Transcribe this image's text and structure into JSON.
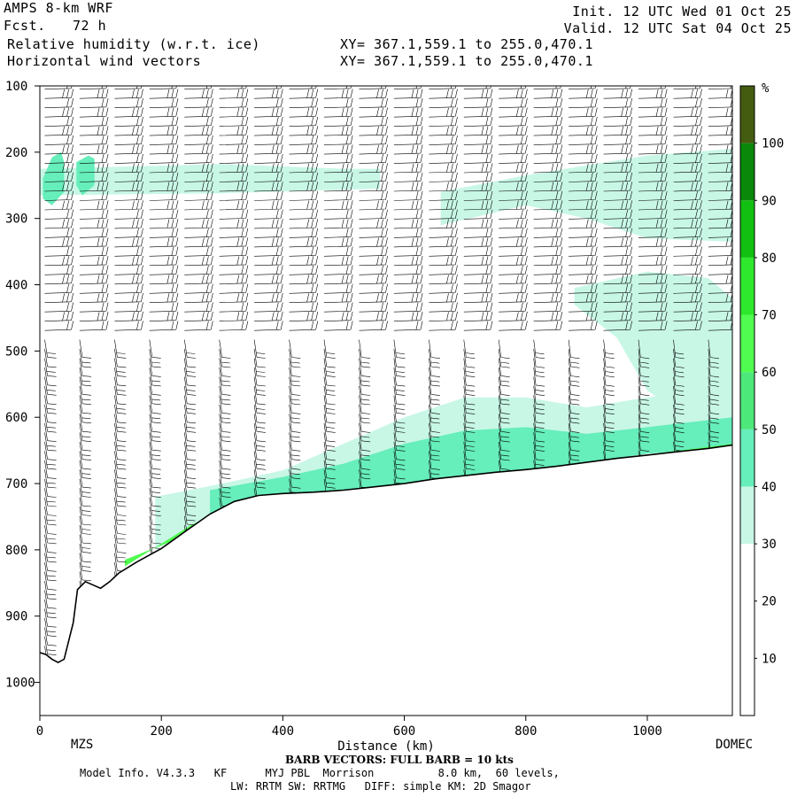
{
  "header": {
    "model": "AMPS 8-km WRF",
    "fcst_label": "Fcst.",
    "fcst_value": "72 h",
    "field1": "Relative humidity (w.r.t. ice)",
    "field2": "Horizontal wind vectors",
    "xy1": "XY= 367.1,559.1 to 255.0,470.1",
    "xy2": "XY= 367.1,559.1 to 255.0,470.1",
    "init": "Init. 12 UTC Wed 01 Oct 25",
    "valid": "Valid. 12 UTC Sat 04 Oct 25"
  },
  "footer": {
    "left_station": "MZS",
    "right_station": "DOMEC",
    "barb_note": "BARB VECTORS: FULL BARB = 10 kts",
    "model_info": "Model Info. V4.3.3   KF      MYJ PBL  Morrison          8.0 km,  60 levels,",
    "model_info2": "LW: RRTM SW: RRTMG   DIFF: simple KM: 2D Smagor"
  },
  "colorbar": {
    "unit": "%",
    "tick_labels": [
      "10",
      "20",
      "30",
      "40",
      "50",
      "60",
      "70",
      "80",
      "90",
      "100"
    ],
    "colors": [
      "#ffffff",
      "#ffffff",
      "#c8f7e6",
      "#66eebb",
      "#4de87a",
      "#50fc50",
      "#2ee82e",
      "#12c012",
      "#0a880a",
      "#445c10"
    ]
  },
  "chart_data": {
    "type": "heatmap",
    "title": "Relative humidity (w.r.t. ice)",
    "xlabel": "Distance (km)",
    "ylabel": "",
    "xlim": [
      0,
      1140
    ],
    "ylim": [
      1050,
      100
    ],
    "x_ticks": [
      0,
      200,
      400,
      600,
      800,
      1000
    ],
    "y_ticks": [
      100,
      200,
      300,
      400,
      500,
      600,
      700,
      800,
      900,
      1000
    ],
    "grid": false,
    "terrain_pressure_hpa": {
      "x": [
        0,
        10,
        20,
        30,
        40,
        55,
        62,
        75,
        85,
        100,
        115,
        130,
        160,
        200,
        240,
        280,
        320,
        360,
        400,
        450,
        500,
        550,
        600,
        650,
        700,
        750,
        800,
        850,
        900,
        950,
        1000,
        1050,
        1100,
        1140
      ],
      "p": [
        955,
        958,
        965,
        970,
        965,
        910,
        860,
        848,
        852,
        858,
        848,
        835,
        818,
        798,
        772,
        746,
        727,
        718,
        715,
        713,
        710,
        705,
        700,
        693,
        688,
        683,
        679,
        674,
        668,
        662,
        657,
        652,
        647,
        642
      ]
    },
    "rh_regions": [
      {
        "level_pct": 30,
        "desc": "upper moist layer",
        "x": [
          0,
          300,
          500,
          560,
          560,
          300,
          0
        ],
        "p": [
          225,
          218,
          225,
          225,
          255,
          262,
          265
        ]
      },
      {
        "level_pct": 30,
        "desc": "upper east moist layer",
        "x": [
          660,
          800,
          1000,
          1140,
          1140,
          1000,
          900,
          800,
          660
        ],
        "p": [
          260,
          235,
          205,
          195,
          335,
          330,
          300,
          280,
          310
        ]
      },
      {
        "level_pct": 40,
        "desc": "western upper pocket",
        "x": [
          5,
          20,
          35,
          40,
          40,
          20,
          5
        ],
        "p": [
          240,
          208,
          200,
          215,
          260,
          280,
          270
        ]
      },
      {
        "level_pct": 40,
        "desc": "western upper pocket 2",
        "x": [
          60,
          80,
          90,
          90,
          70,
          60
        ],
        "p": [
          215,
          205,
          210,
          250,
          265,
          250
        ]
      },
      {
        "level_pct": 30,
        "desc": "eastern mid-level moist tongue",
        "x": [
          880,
          1000,
          1100,
          1140,
          1140,
          1100,
          1000,
          950,
          880
        ],
        "p": [
          405,
          380,
          390,
          420,
          560,
          620,
          560,
          480,
          430
        ]
      },
      {
        "level_pct": 30,
        "desc": "lower moist layer",
        "x": [
          190,
          300,
          400,
          500,
          600,
          700,
          800,
          900,
          1000,
          1140,
          1140,
          1000,
          900,
          800,
          700,
          600,
          500,
          400,
          300,
          190
        ],
        "p": [
          720,
          700,
          680,
          640,
          600,
          570,
          570,
          585,
          570,
          555,
          640,
          652,
          666,
          679,
          688,
          700,
          710,
          715,
          745,
          800
        ]
      },
      {
        "level_pct": 40,
        "desc": "lower saturated layer",
        "x": [
          280,
          400,
          500,
          600,
          700,
          800,
          900,
          1000,
          1140,
          1140,
          1000,
          900,
          800,
          700,
          600,
          500,
          400,
          280
        ],
        "p": [
          710,
          690,
          670,
          640,
          620,
          615,
          625,
          615,
          600,
          645,
          655,
          668,
          680,
          690,
          701,
          711,
          716,
          750
        ]
      },
      {
        "level_pct": 60,
        "desc": "near-surface band",
        "x": [
          140,
          250,
          350,
          500,
          700,
          900,
          1140,
          1140,
          900,
          700,
          500,
          350,
          250,
          140
        ],
        "p": [
          815,
          775,
          730,
          712,
          688,
          668,
          640,
          646,
          674,
          694,
          716,
          722,
          762,
          825
        ]
      }
    ]
  }
}
